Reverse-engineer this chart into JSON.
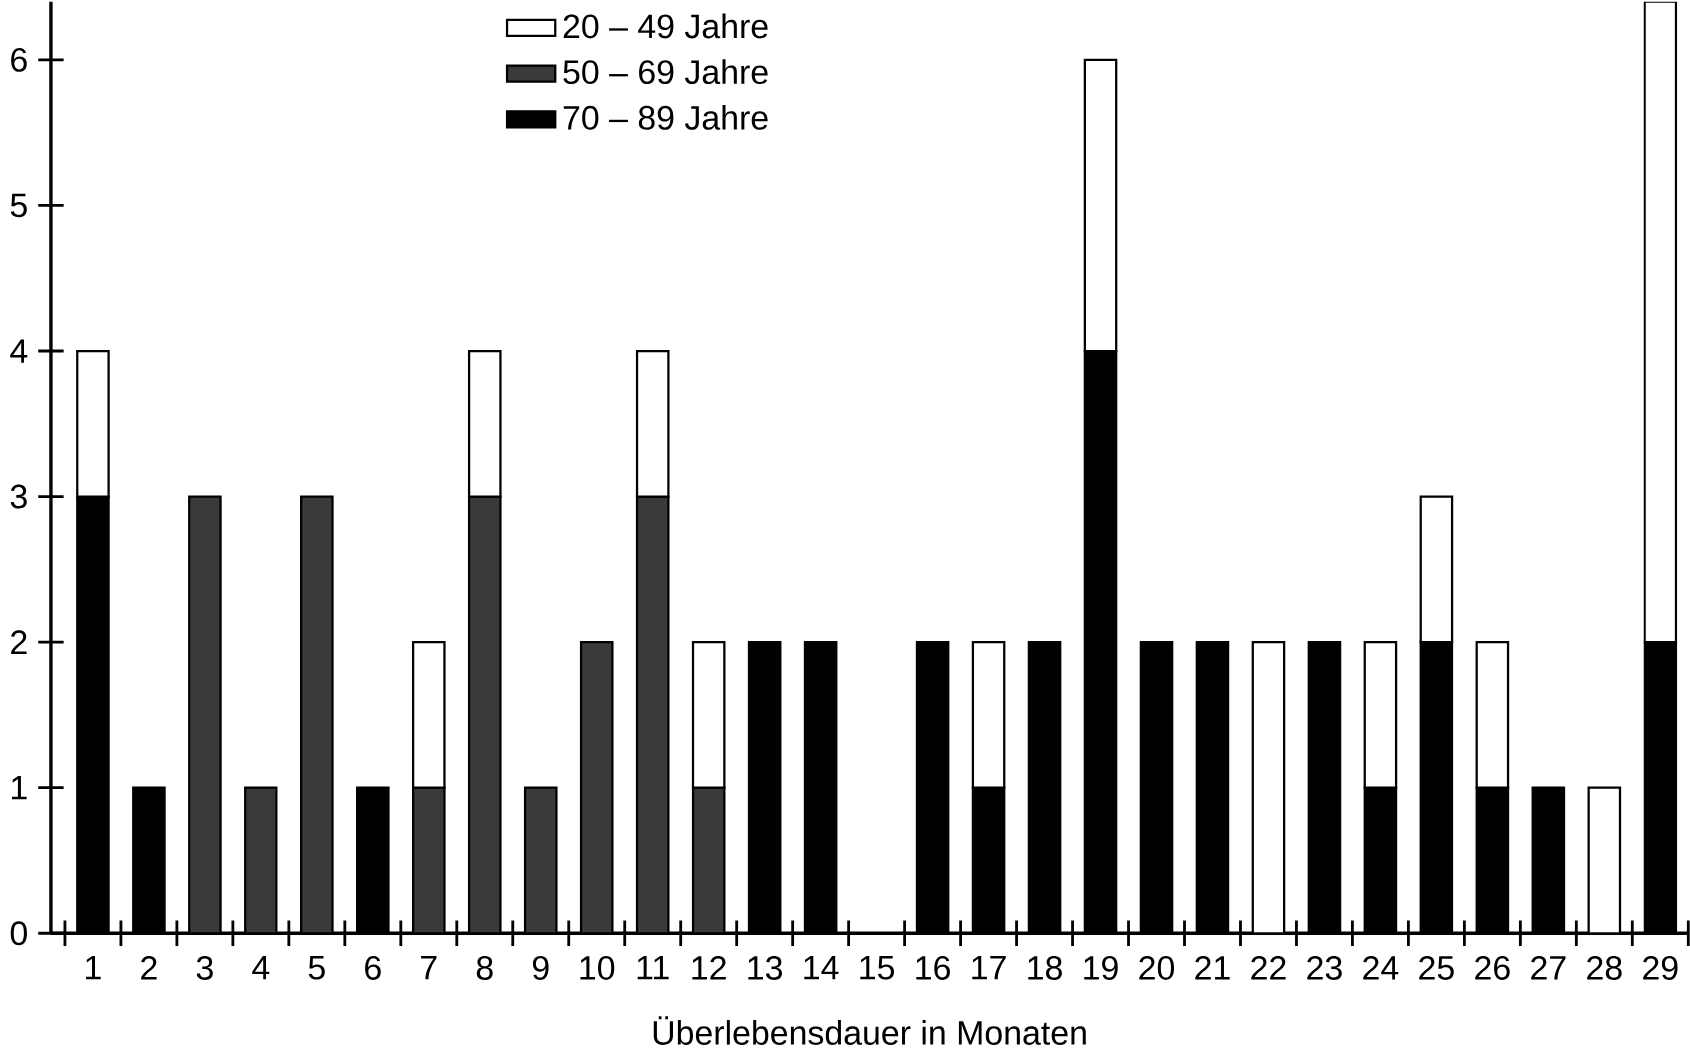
{
  "chart_data": {
    "type": "bar",
    "stacked": true,
    "xlabel": "Überlebensdauer in Monaten",
    "categories": [
      "1",
      "2",
      "3",
      "4",
      "5",
      "6",
      "7",
      "8",
      "9",
      "10",
      "11",
      "12",
      "13",
      "14",
      "15",
      "16",
      "17",
      "18",
      "19",
      "20",
      "21",
      "22",
      "23",
      "24",
      "25",
      "26",
      "27",
      "28",
      "29"
    ],
    "series": [
      {
        "name": "70 – 89 Jahre",
        "color": "#000000",
        "values": [
          3,
          1,
          0,
          0,
          0,
          1,
          0,
          0,
          0,
          0,
          0,
          0,
          2,
          2,
          0,
          2,
          1,
          2,
          4,
          2,
          2,
          0,
          2,
          1,
          2,
          1,
          1,
          0,
          2
        ]
      },
      {
        "name": "50 – 69 Jahre",
        "color": "#3a3a3a",
        "values": [
          0,
          0,
          3,
          1,
          3,
          0,
          1,
          3,
          1,
          2,
          3,
          1,
          0,
          0,
          0,
          0,
          0,
          0,
          0,
          0,
          0,
          0,
          0,
          0,
          0,
          0,
          0,
          0,
          0
        ]
      },
      {
        "name": "20 – 49 Jahre",
        "color": "#ffffff",
        "values": [
          1,
          0,
          0,
          0,
          0,
          0,
          1,
          1,
          0,
          0,
          1,
          1,
          0,
          0,
          0,
          0,
          1,
          0,
          2,
          0,
          0,
          2,
          0,
          1,
          1,
          1,
          0,
          1,
          4.4
        ]
      }
    ],
    "ylim": [
      0,
      6.4
    ],
    "yticks": [
      0,
      1,
      2,
      3,
      4,
      5,
      6
    ],
    "grid": false,
    "legend": "top"
  }
}
